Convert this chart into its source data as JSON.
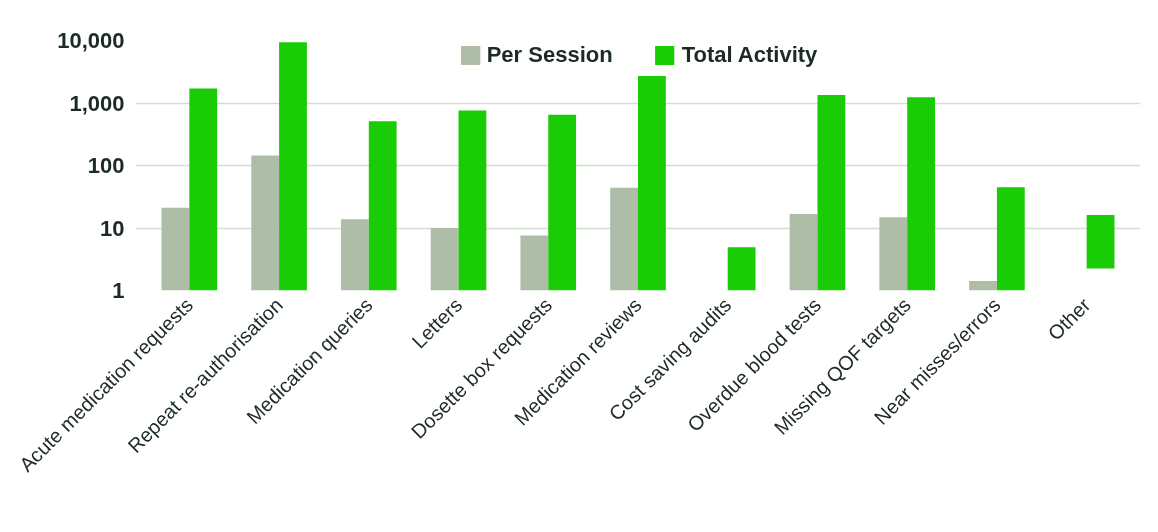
{
  "chart_data": {
    "type": "bar",
    "log": "y",
    "grid": "y",
    "legend": "top",
    "categories": [
      "Acute medication requests",
      "Repeat re-authorisation",
      "Medication queries",
      "Letters",
      "Dosette box requests",
      "Medication reviews",
      "Cost saving audits",
      "Overdue blood tests",
      "Missing QOF targets",
      "Near misses/errors",
      "Other"
    ],
    "series": [
      {
        "name": "Per Session",
        "color": "#adbda8",
        "values": [
          21,
          145,
          13.8,
          10,
          7.6,
          44,
          null,
          16.8,
          14.9,
          1.42,
          null
        ]
      },
      {
        "name": "Total Activity",
        "color": "#1acc05",
        "values": [
          1700,
          9400,
          510,
          760,
          650,
          2700,
          3.9,
          1340,
          1240,
          44,
          13.9
        ],
        "base": [
          1,
          1,
          1,
          1,
          1,
          1,
          1,
          1,
          1,
          1,
          2.24
        ]
      }
    ],
    "ylim": [
      1,
      10000
    ],
    "yticks": [
      1,
      10,
      100,
      {
        "value": 1000,
        "label": "1,000"
      },
      {
        "value": 10000,
        "label": "10,000"
      }
    ]
  }
}
